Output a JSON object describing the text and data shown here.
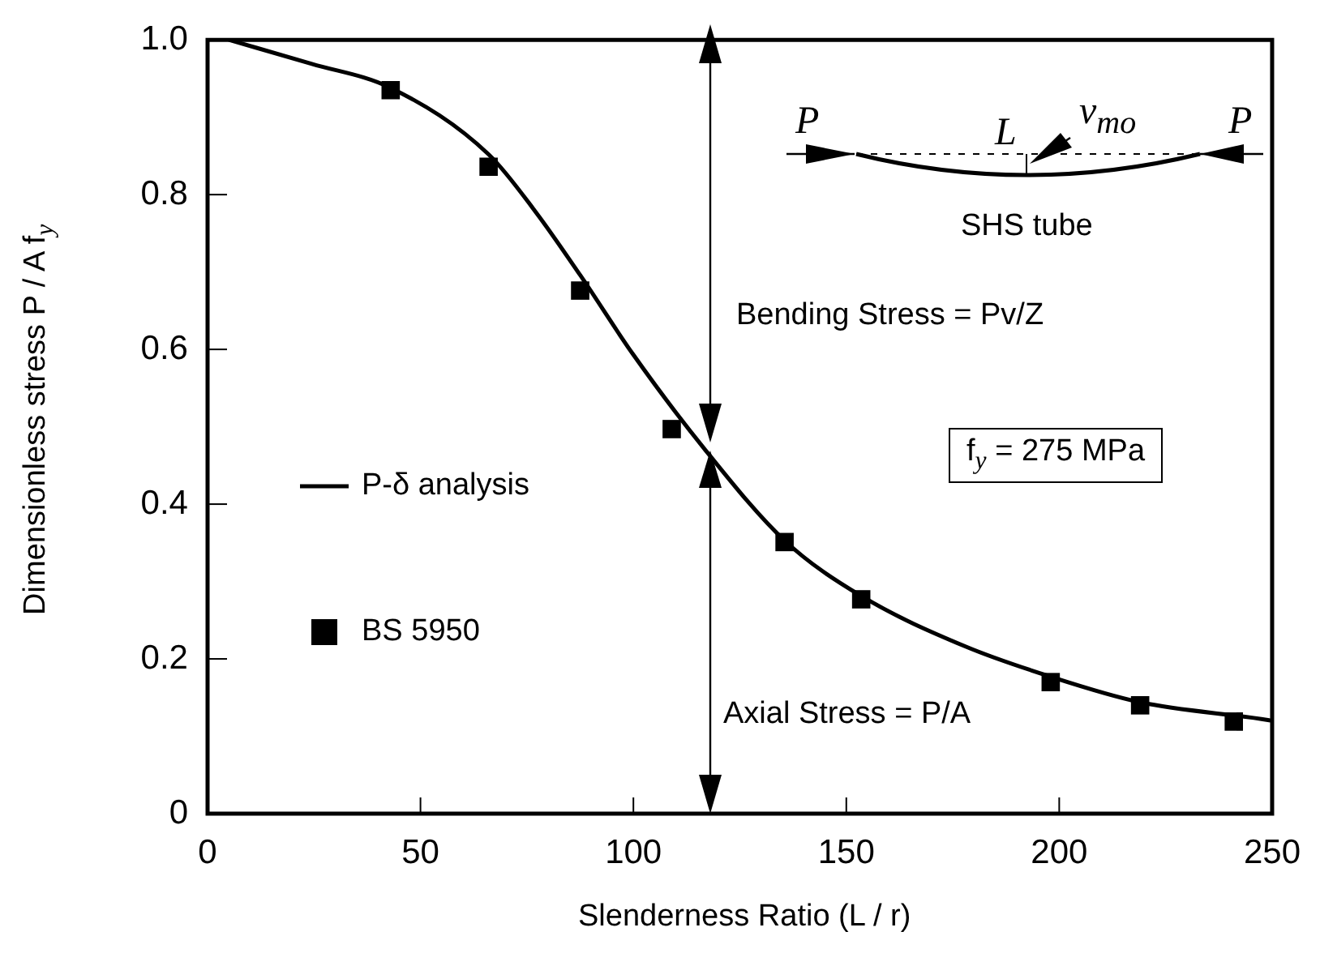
{
  "chart_data": {
    "type": "line",
    "xlabel": "Slenderness Ratio (L / r)",
    "ylabel": "Dimensionless stress P / A f$_{y}$",
    "xlim": [
      0,
      250
    ],
    "xticks": [
      0,
      50,
      100,
      150,
      200,
      250
    ],
    "ylim": [
      0,
      1
    ],
    "yticks": [
      0,
      0.2,
      0.4,
      0.6,
      0.8,
      {
        "value": 1,
        "label": "1.0"
      }
    ],
    "grid": false,
    "legend": "center left",
    "series": [
      {
        "name": "P-δ analysis",
        "color": "#000000",
        "marker": "none",
        "line_style": "solid",
        "x": [
          5,
          24.5,
          43,
          66,
          77,
          87.5,
          100,
          116.6,
          135.5,
          153.6,
          178,
          198,
          219,
          249,
          250
        ],
        "values": [
          1.0,
          0.969,
          0.938,
          0.852,
          0.778,
          0.696,
          0.593,
          0.472,
          0.353,
          0.281,
          0.216,
          0.177,
          0.144,
          0.121,
          0.12
        ]
      },
      {
        "name": "BS 5950",
        "type": "scatter",
        "color": "#000000",
        "marker": "square",
        "x": [
          43,
          66,
          87.5,
          109,
          135.5,
          153.5,
          198,
          219,
          241
        ],
        "values": [
          0.935,
          0.836,
          0.676,
          0.497,
          0.351,
          0.277,
          0.17,
          0.14,
          0.119
        ]
      }
    ],
    "annotations": [
      "Bending Stress = Pv/Z",
      "Axial Stress = P/A",
      "f$_{y}$ = 275 MPa",
      "P",
      "L",
      "v$_{mo}$",
      "P",
      "SHS tube"
    ]
  }
}
